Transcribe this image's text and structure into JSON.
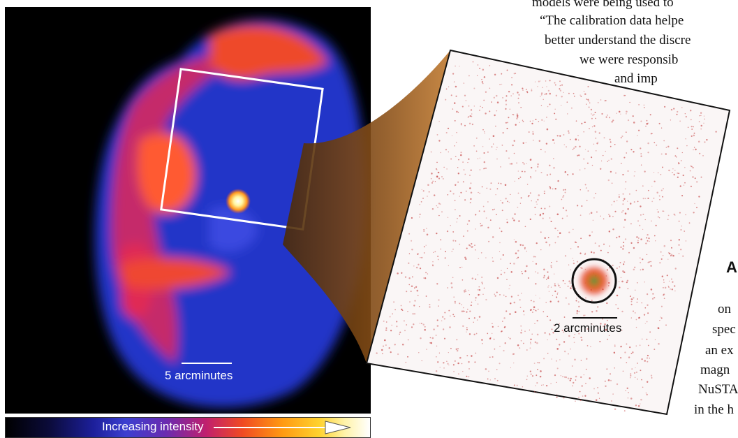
{
  "article": {
    "lines": [
      "models were being used to",
      "“The calibration data helpe",
      "better understand the discre",
      "we were responsib",
      "and imp",
      "on",
      "spec",
      "an ex",
      "magn",
      "NuSTA",
      "in the h"
    ],
    "heading_letter": "A"
  },
  "figure": {
    "left_scale_label": "5 arcminutes",
    "inset_scale_label": "2 arcminutes",
    "colorbar_label": "Increasing intensity"
  }
}
